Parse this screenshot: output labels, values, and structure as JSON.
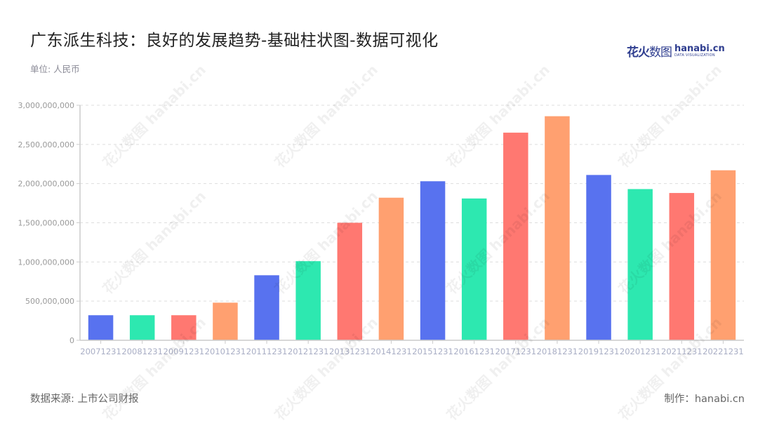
{
  "header": {
    "title": "广东派生科技：良好的发展趋势-基础柱状图-数据可视化",
    "unit": "单位: 人民币"
  },
  "logo": {
    "cn_bold": "花火",
    "cn_light": "数图",
    "en_name": "hanabi.cn",
    "en_sub": "DATA VISUALIZATION"
  },
  "footer": {
    "source": "数据来源: 上市公司财报",
    "credit": "制作：hanabi.cn"
  },
  "watermark": "花火数图 hanabi.cn",
  "colors": {
    "palette": [
      "#5872ef",
      "#2de8b0",
      "#ff7871",
      "#ffa070"
    ],
    "grid": "#dddddd",
    "axis": "#cccccc",
    "tick_label": "#999999",
    "x_label": "#a9aec5"
  },
  "chart_data": {
    "type": "bar",
    "title": "广东派生科技：良好的发展趋势-基础柱状图-数据可视化",
    "xlabel": "",
    "ylabel": "单位: 人民币",
    "ylim": [
      0,
      3000000000
    ],
    "yticks": [
      0,
      500000000,
      1000000000,
      1500000000,
      2000000000,
      2500000000,
      3000000000
    ],
    "ytick_labels": [
      "0",
      "500,000,000",
      "1,000,000,000",
      "1,500,000,000",
      "2,000,000,000",
      "2,500,000,000",
      "3,000,000,000"
    ],
    "grid": true,
    "legend": "none",
    "categories": [
      "20071231",
      "20081231",
      "20091231",
      "20101231",
      "20111231",
      "20121231",
      "20131231",
      "20141231",
      "20151231",
      "20161231",
      "20171231",
      "20181231",
      "20191231",
      "20201231",
      "20211231",
      "20221231"
    ],
    "values": [
      320000000,
      320000000,
      320000000,
      480000000,
      830000000,
      1010000000,
      1500000000,
      1820000000,
      2030000000,
      1810000000,
      2650000000,
      2860000000,
      2110000000,
      1930000000,
      1880000000,
      2170000000
    ]
  }
}
